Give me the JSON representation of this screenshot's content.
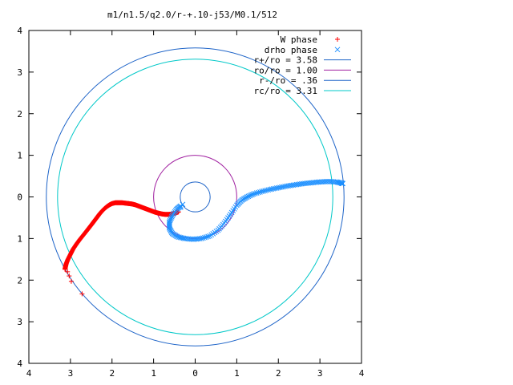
{
  "chart_data": {
    "type": "scatter",
    "title": "m1/n1.5/q2.0/r-+.10-j53/M0.1/512",
    "xlabel": "",
    "ylabel": "",
    "xlim": [
      -4,
      4
    ],
    "ylim": [
      -4,
      4
    ],
    "grid": false,
    "legend_position": "top-right",
    "x_tick_labels": [
      "4",
      "3",
      "2",
      "1",
      "0",
      "1",
      "2",
      "3",
      "4"
    ],
    "y_tick_labels": [
      "4",
      "3",
      "2",
      "1",
      "0",
      "1",
      "2",
      "3",
      "4"
    ],
    "circles": [
      {
        "name": "r+/ro = 3.58",
        "radius": 3.58,
        "color": "#1e64c8"
      },
      {
        "name": "ro/ro = 1.00",
        "radius": 1.0,
        "color": "#a020a0"
      },
      {
        "name": "r-/ro = .36",
        "radius": 0.36,
        "color": "#1e64c8"
      },
      {
        "name": "rc/ro = 3.31",
        "radius": 3.31,
        "color": "#00c8c8"
      }
    ],
    "series": [
      {
        "name": "W phase",
        "marker": "+",
        "color": "#ff0000",
        "curve": [
          [
            -0.4,
            -0.36
          ],
          [
            -0.48,
            -0.39
          ],
          [
            -0.56,
            -0.41
          ],
          [
            -0.64,
            -0.42
          ],
          [
            -0.72,
            -0.42
          ],
          [
            -0.8,
            -0.41
          ],
          [
            -0.88,
            -0.39
          ],
          [
            -0.96,
            -0.37
          ],
          [
            -1.04,
            -0.34
          ],
          [
            -1.12,
            -0.31
          ],
          [
            -1.2,
            -0.28
          ],
          [
            -1.28,
            -0.25
          ],
          [
            -1.36,
            -0.22
          ],
          [
            -1.44,
            -0.19
          ],
          [
            -1.52,
            -0.17
          ],
          [
            -1.6,
            -0.16
          ],
          [
            -1.68,
            -0.15
          ],
          [
            -1.76,
            -0.14
          ],
          [
            -1.84,
            -0.14
          ],
          [
            -1.92,
            -0.14
          ],
          [
            -2.0,
            -0.16
          ],
          [
            -2.06,
            -0.19
          ],
          [
            -2.12,
            -0.23
          ],
          [
            -2.18,
            -0.28
          ],
          [
            -2.24,
            -0.34
          ],
          [
            -2.3,
            -0.41
          ],
          [
            -2.36,
            -0.49
          ],
          [
            -2.42,
            -0.57
          ],
          [
            -2.48,
            -0.65
          ],
          [
            -2.55,
            -0.74
          ],
          [
            -2.62,
            -0.83
          ],
          [
            -2.7,
            -0.93
          ],
          [
            -2.78,
            -1.03
          ],
          [
            -2.86,
            -1.14
          ],
          [
            -2.94,
            -1.26
          ],
          [
            -3.0,
            -1.38
          ],
          [
            -3.06,
            -1.5
          ],
          [
            -3.1,
            -1.6
          ],
          [
            -3.12,
            -1.68
          ],
          [
            -3.13,
            -1.74
          ]
        ],
        "sparse": [
          [
            -3.07,
            -1.8
          ],
          [
            -3.03,
            -1.9
          ],
          [
            -2.98,
            -2.03
          ],
          [
            -2.72,
            -2.33
          ]
        ]
      },
      {
        "name": "drho phase",
        "marker": "x",
        "color": "#1e90ff",
        "curve": [
          [
            -0.35,
            -0.22
          ],
          [
            -0.45,
            -0.3
          ],
          [
            -0.55,
            -0.45
          ],
          [
            -0.62,
            -0.6
          ],
          [
            -0.62,
            -0.75
          ],
          [
            -0.55,
            -0.88
          ],
          [
            -0.42,
            -0.96
          ],
          [
            -0.25,
            -1.0
          ],
          [
            -0.05,
            -1.02
          ],
          [
            0.15,
            -1.0
          ],
          [
            0.35,
            -0.94
          ],
          [
            0.55,
            -0.8
          ],
          [
            0.7,
            -0.63
          ],
          [
            0.85,
            -0.42
          ],
          [
            1.0,
            -0.2
          ],
          [
            1.12,
            -0.08
          ],
          [
            1.25,
            0.0
          ],
          [
            1.4,
            0.07
          ],
          [
            1.6,
            0.13
          ],
          [
            1.8,
            0.18
          ],
          [
            2.0,
            0.22
          ],
          [
            2.2,
            0.26
          ],
          [
            2.4,
            0.29
          ],
          [
            2.6,
            0.32
          ],
          [
            2.8,
            0.34
          ],
          [
            3.0,
            0.36
          ],
          [
            3.2,
            0.37
          ],
          [
            3.4,
            0.36
          ],
          [
            3.52,
            0.33
          ],
          [
            3.55,
            0.32
          ]
        ],
        "sparse": [
          [
            -0.3,
            -0.18
          ],
          [
            -0.35,
            -0.25
          ]
        ]
      }
    ]
  }
}
